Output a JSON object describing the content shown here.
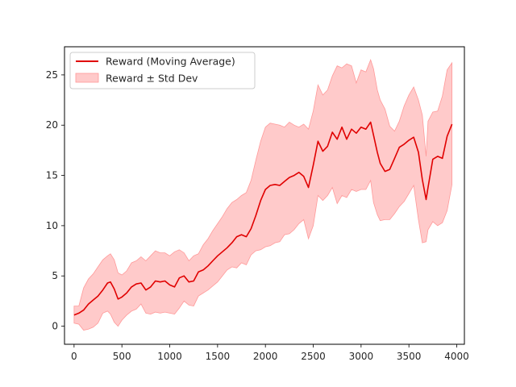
{
  "chart_data": {
    "type": "line",
    "title": "",
    "xlabel": "",
    "ylabel": "",
    "xlim": [
      -100,
      4080
    ],
    "ylim": [
      -1.8,
      27.8
    ],
    "x_ticks": [
      0,
      500,
      1000,
      1500,
      2000,
      2500,
      3000,
      3500,
      4000
    ],
    "y_ticks": [
      0,
      5,
      10,
      15,
      20,
      25
    ],
    "grid": false,
    "legend_position": "top-left",
    "colors": {
      "mean": "#e00000",
      "band": "#ffb3b3",
      "band_edge": "#ff9999"
    },
    "series": [
      {
        "name": "Reward (Moving Average)",
        "kind": "line",
        "x": [
          0,
          50,
          100,
          150,
          200,
          250,
          300,
          350,
          380,
          420,
          460,
          500,
          550,
          600,
          650,
          700,
          750,
          800,
          850,
          900,
          950,
          1000,
          1050,
          1100,
          1150,
          1200,
          1250,
          1300,
          1350,
          1400,
          1450,
          1500,
          1550,
          1600,
          1650,
          1700,
          1750,
          1800,
          1850,
          1900,
          1950,
          2000,
          2050,
          2100,
          2150,
          2200,
          2250,
          2300,
          2350,
          2400,
          2450,
          2500,
          2550,
          2600,
          2650,
          2700,
          2750,
          2800,
          2850,
          2900,
          2950,
          3000,
          3050,
          3100,
          3130,
          3170,
          3200,
          3250,
          3300,
          3350,
          3400,
          3450,
          3500,
          3550,
          3600,
          3640,
          3680,
          3700,
          3750,
          3800,
          3850,
          3900,
          3950
        ],
        "y": [
          1.1,
          1.3,
          1.6,
          2.2,
          2.6,
          3.0,
          3.6,
          4.3,
          4.4,
          3.7,
          2.7,
          2.9,
          3.3,
          3.9,
          4.2,
          4.3,
          3.6,
          3.9,
          4.5,
          4.4,
          4.5,
          4.1,
          3.9,
          4.8,
          5.0,
          4.4,
          4.5,
          5.4,
          5.6,
          6.0,
          6.5,
          7.0,
          7.4,
          7.8,
          8.3,
          8.9,
          9.1,
          8.9,
          9.7,
          11.0,
          12.5,
          13.6,
          14.0,
          14.1,
          14.0,
          14.4,
          14.8,
          15.0,
          15.3,
          14.9,
          13.8,
          16.0,
          18.4,
          17.4,
          17.9,
          19.3,
          18.6,
          19.8,
          18.6,
          19.6,
          19.2,
          19.8,
          19.6,
          20.3,
          19.0,
          17.3,
          16.2,
          15.4,
          15.6,
          16.7,
          17.8,
          18.1,
          18.5,
          18.8,
          17.3,
          14.6,
          12.6,
          13.8,
          16.6,
          16.9,
          16.7,
          18.9,
          20.1
        ]
      },
      {
        "name": "Reward ± Std Dev",
        "kind": "band",
        "x": [
          0,
          50,
          100,
          150,
          200,
          250,
          300,
          350,
          380,
          420,
          460,
          500,
          550,
          600,
          650,
          700,
          750,
          800,
          850,
          900,
          950,
          1000,
          1050,
          1100,
          1150,
          1200,
          1250,
          1300,
          1350,
          1400,
          1450,
          1500,
          1550,
          1600,
          1650,
          1700,
          1750,
          1800,
          1850,
          1900,
          1950,
          2000,
          2050,
          2100,
          2150,
          2200,
          2250,
          2300,
          2350,
          2400,
          2450,
          2500,
          2550,
          2600,
          2650,
          2700,
          2750,
          2800,
          2850,
          2900,
          2950,
          3000,
          3050,
          3100,
          3130,
          3170,
          3200,
          3250,
          3300,
          3350,
          3400,
          3450,
          3500,
          3550,
          3600,
          3640,
          3680,
          3700,
          3750,
          3800,
          3850,
          3900,
          3950
        ],
        "upper": [
          2.0,
          2.0,
          3.8,
          4.7,
          5.2,
          5.9,
          6.6,
          7.0,
          7.2,
          6.6,
          5.3,
          5.1,
          5.5,
          6.3,
          6.5,
          6.9,
          6.5,
          7.0,
          7.5,
          7.3,
          7.3,
          7.0,
          7.4,
          7.6,
          7.3,
          6.5,
          7.0,
          7.2,
          8.1,
          8.7,
          9.5,
          10.2,
          10.9,
          11.7,
          12.3,
          12.6,
          13.0,
          13.3,
          14.5,
          16.5,
          18.4,
          19.8,
          20.2,
          20.1,
          20.0,
          19.8,
          20.3,
          20.0,
          19.8,
          20.1,
          19.6,
          21.4,
          24.0,
          23.0,
          23.5,
          24.9,
          25.9,
          25.7,
          26.1,
          25.9,
          24.2,
          25.5,
          25.3,
          26.5,
          25.6,
          23.5,
          22.5,
          21.6,
          19.9,
          19.4,
          20.4,
          21.9,
          23.0,
          23.8,
          22.5,
          21.0,
          16.9,
          20.4,
          21.3,
          21.4,
          22.9,
          25.5,
          26.2
        ],
        "lower": [
          0.3,
          0.2,
          -0.4,
          -0.3,
          -0.1,
          0.3,
          1.3,
          1.5,
          1.2,
          0.4,
          0.0,
          0.6,
          1.1,
          1.5,
          1.7,
          2.2,
          1.3,
          1.2,
          1.4,
          1.3,
          1.4,
          1.3,
          1.2,
          1.8,
          2.5,
          2.1,
          2.0,
          3.0,
          3.3,
          3.6,
          4.0,
          4.4,
          5.0,
          5.6,
          5.9,
          5.8,
          6.3,
          6.1,
          7.1,
          7.5,
          7.6,
          7.9,
          8.0,
          8.3,
          8.4,
          9.1,
          9.2,
          9.6,
          10.2,
          10.6,
          8.7,
          10.0,
          13.0,
          12.5,
          13.0,
          13.8,
          12.2,
          13.0,
          12.8,
          13.6,
          13.4,
          13.6,
          13.6,
          14.5,
          12.3,
          11.1,
          10.5,
          10.6,
          10.6,
          11.2,
          11.9,
          12.4,
          13.2,
          14.0,
          10.6,
          8.3,
          8.4,
          9.6,
          10.4,
          10.0,
          10.3,
          11.5,
          14.1
        ]
      }
    ]
  }
}
